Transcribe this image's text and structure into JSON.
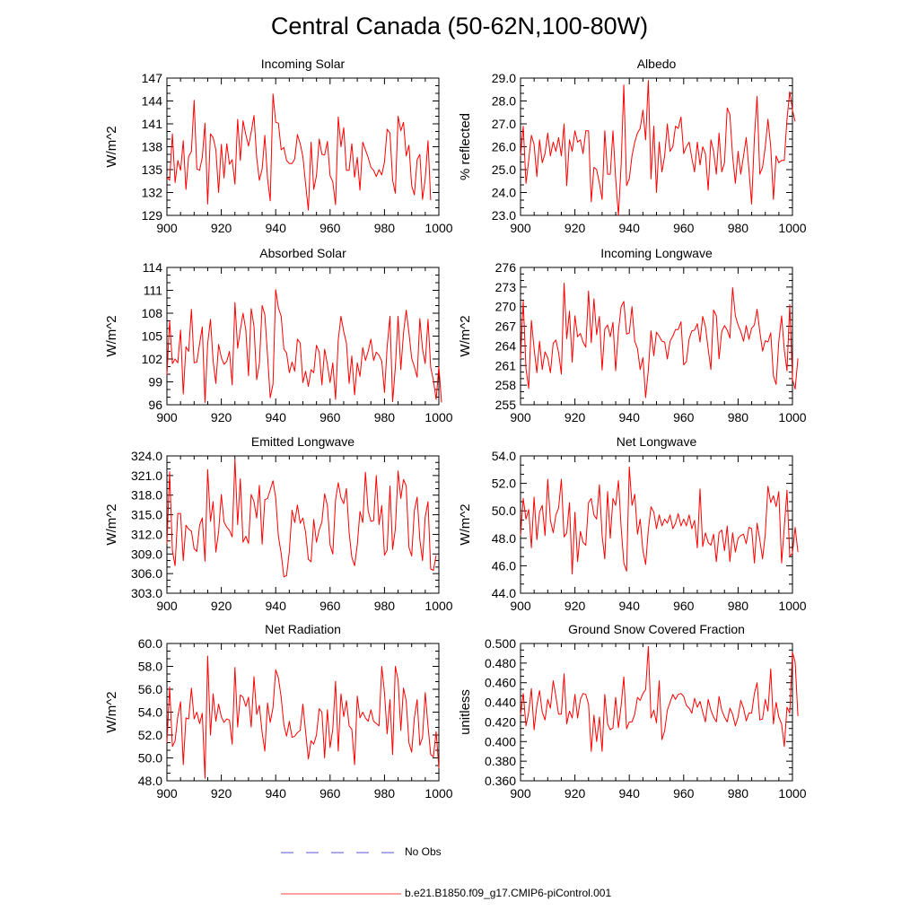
{
  "page": {
    "title": "Central Canada (50-62N,100-80W)"
  },
  "legend": [
    {
      "label": "No Obs",
      "color": "#2020c0",
      "style": "dashed"
    },
    {
      "label": "b.e21.B1850.f09_g17.CMIP6-piControl.001",
      "color": "#ff0000",
      "style": "solid"
    }
  ],
  "series_color": "#ff0000",
  "chart_data": [
    {
      "type": "line",
      "title": "Incoming Solar",
      "ylabel": "W/m^2",
      "xlim": [
        900,
        1000
      ],
      "xticks": [
        "900",
        "920",
        "940",
        "960",
        "980",
        "1000"
      ],
      "ylim": [
        129,
        147
      ],
      "yticks": [
        "129",
        "132",
        "135",
        "138",
        "141",
        "144",
        "147"
      ],
      "x_start": 900,
      "values": [
        134.0,
        133.6,
        139.7,
        133.3,
        136.2,
        134.9,
        138.8,
        132.4,
        136.7,
        137.4,
        144.1,
        135.1,
        134.9,
        136.6,
        141.1,
        130.5,
        139.7,
        139.2,
        137.6,
        132.0,
        138.3,
        133.9,
        138.4,
        135.7,
        136.3,
        133.1,
        141.6,
        136.2,
        141.4,
        139.6,
        138.1,
        139.9,
        142.1,
        136.6,
        133.6,
        135.1,
        139.5,
        133.8,
        130.9,
        144.9,
        141.2,
        141.1,
        137.6,
        137.9,
        136.2,
        135.8,
        135.8,
        136.4,
        139.6,
        138.4,
        136.7,
        133.1,
        129.7,
        138.6,
        132.4,
        134.2,
        139.0,
        137.0,
        136.9,
        138.7,
        134.2,
        133.4,
        130.4,
        141.9,
        138.0,
        140.5,
        134.9,
        134.9,
        138.4,
        134.0,
        136.6,
        132.3,
        138.6,
        137.6,
        136.6,
        135.3,
        134.9,
        134.1,
        135.0,
        134.3,
        136.0,
        140.3,
        139.8,
        133.6,
        131.9,
        142.0,
        140.1,
        141.2,
        136.8,
        138.2,
        132.9,
        131.7,
        136.3,
        137.0,
        131.1,
        133.8,
        138.8,
        131.0
      ]
    },
    {
      "type": "line",
      "title": "Albedo",
      "ylabel": "% reflected",
      "xlim": [
        900,
        1000
      ],
      "xticks": [
        "900",
        "920",
        "940",
        "960",
        "980",
        "1000"
      ],
      "ylim": [
        23.0,
        29.0
      ],
      "yticks": [
        "23.0",
        "24.0",
        "25.0",
        "26.0",
        "27.0",
        "28.0",
        "29.0"
      ],
      "x_start": 900,
      "values": [
        25.6,
        26.9,
        24.4,
        25.4,
        26.5,
        26.1,
        24.7,
        26.3,
        25.3,
        25.7,
        26.6,
        25.6,
        26.2,
        25.8,
        26.4,
        25.6,
        27.0,
        24.3,
        26.3,
        25.8,
        26.7,
        26.2,
        26.3,
        25.7,
        26.7,
        26.7,
        23.6,
        25.1,
        25.0,
        24.4,
        23.7,
        26.7,
        24.8,
        24.8,
        26.7,
        24.6,
        23.0,
        25.2,
        28.7,
        24.3,
        24.6,
        25.6,
        26.2,
        26.6,
        26.8,
        27.6,
        26.3,
        28.9,
        24.6,
        26.9,
        24.0,
        26.2,
        24.9,
        25.6,
        27.0,
        25.8,
        26.0,
        26.9,
        26.8,
        27.3,
        25.7,
        26.0,
        26.2,
        25.5,
        24.9,
        26.2,
        25.2,
        26.0,
        25.7,
        24.1,
        26.3,
        25.8,
        24.8,
        26.6,
        24.9,
        25.3,
        27.7,
        27.4,
        25.6,
        24.4,
        25.8,
        24.8,
        25.6,
        26.4,
        25.0,
        23.5,
        26.4,
        28.2,
        24.8,
        25.1,
        26.0,
        27.2,
        26.0,
        23.7,
        25.6,
        25.3,
        25.4,
        25.4,
        27.2,
        28.4,
        27.6,
        27.1
      ]
    },
    {
      "type": "line",
      "title": "Absorbed Solar",
      "ylabel": "W/m^2",
      "xlim": [
        900,
        1000
      ],
      "xticks": [
        "900",
        "920",
        "940",
        "960",
        "980",
        "1000"
      ],
      "ylim": [
        96,
        114
      ],
      "yticks": [
        "96",
        "99",
        "102",
        "105",
        "108",
        "111",
        "114"
      ],
      "x_start": 900,
      "values": [
        99.9,
        107.0,
        101.4,
        102.0,
        101.5,
        105.8,
        97.4,
        103.6,
        103.0,
        108.5,
        101.5,
        101.6,
        104.0,
        106.2,
        96.3,
        104.0,
        107.2,
        101.7,
        98.8,
        103.9,
        102.2,
        101.3,
        101.7,
        103.0,
        98.6,
        109.4,
        103.4,
        105.8,
        108.0,
        105.8,
        99.8,
        108.6,
        106.3,
        99.3,
        101.4,
        109.0,
        107.8,
        102.5,
        96.9,
        98.7,
        111.1,
        108.7,
        107.6,
        103.3,
        102.8,
        100.2,
        101.6,
        100.4,
        104.6,
        104.1,
        98.9,
        100.4,
        98.4,
        100.6,
        100.2,
        103.8,
        102.9,
        98.6,
        103.3,
        101.3,
        98.9,
        101.5,
        96.7,
        104.5,
        107.6,
        105.6,
        104.1,
        98.8,
        102.4,
        97.3,
        101.5,
        99.7,
        103.5,
        101.8,
        103.0,
        104.6,
        101.8,
        102.9,
        102.5,
        101.7,
        97.6,
        103.6,
        107.6,
        96.4,
        100.9,
        107.6,
        100.6,
        105.4,
        108.4,
        105.4,
        102.1,
        101.0,
        99.6,
        107.3,
        103.3,
        101.4,
        107.2,
        100.9,
        99.2,
        96.7,
        101.0,
        96.3
      ]
    },
    {
      "type": "line",
      "title": "Incoming Longwave",
      "ylabel": "W/m^2",
      "xlim": [
        900,
        1000
      ],
      "xticks": [
        "900",
        "920",
        "940",
        "960",
        "980",
        "1000"
      ],
      "ylim": [
        255,
        276
      ],
      "yticks": [
        "255",
        "258",
        "261",
        "264",
        "267",
        "270",
        "273",
        "276"
      ],
      "x_start": 900,
      "values": [
        262.0,
        270.9,
        260.5,
        257.5,
        267.9,
        263.6,
        259.9,
        264.7,
        260.4,
        263.1,
        262.2,
        259.9,
        264.4,
        264.9,
        263.0,
        259.7,
        273.6,
        265.1,
        269.3,
        261.5,
        268.6,
        265.4,
        265.9,
        264.6,
        263.8,
        272.4,
        264.5,
        271.2,
        265.7,
        268.5,
        260.3,
        266.6,
        267.2,
        265.4,
        267.6,
        260.2,
        266.3,
        270.0,
        270.8,
        265.8,
        266.0,
        270.0,
        264.7,
        263.6,
        260.4,
        262.2,
        256.1,
        260.3,
        266.3,
        262.5,
        266.1,
        265.5,
        264.7,
        264.6,
        262.0,
        264.7,
        265.5,
        266.5,
        266.5,
        267.7,
        261.1,
        261.6,
        265.1,
        266.3,
        266.4,
        267.4,
        264.6,
        268.5,
        267.0,
        263.5,
        260.4,
        269.5,
        268.6,
        262.0,
        266.2,
        267.1,
        266.4,
        265.2,
        272.9,
        268.6,
        267.2,
        266.2,
        264.7,
        267.1,
        265.0,
        266.7,
        267.2,
        269.6,
        266.2,
        263.2,
        264.8,
        264.6,
        266.0,
        259.4,
        258.1,
        264.7,
        268.6,
        263.4,
        260.2,
        270.3,
        258.9,
        257.4,
        262.1
      ]
    },
    {
      "type": "line",
      "title": "Emitted Longwave",
      "ylabel": "W/m^2",
      "xlim": [
        900,
        1000
      ],
      "xticks": [
        "900",
        "920",
        "940",
        "960",
        "980",
        "1000"
      ],
      "ylim": [
        303.0,
        324.0
      ],
      "yticks": [
        "303.0",
        "306.0",
        "309.0",
        "312.0",
        "315.0",
        "318.0",
        "321.0",
        "324.0"
      ],
      "x_start": 900,
      "values": [
        310.5,
        321.6,
        309.5,
        307.2,
        315.2,
        315.2,
        308.0,
        313.4,
        312.8,
        312.5,
        309.8,
        309.4,
        313.4,
        314.5,
        307.9,
        321.9,
        314.0,
        317.0,
        309.3,
        312.4,
        318.1,
        313.9,
        313.1,
        312.6,
        311.6,
        323.5,
        313.5,
        320.5,
        310.8,
        311.7,
        310.6,
        318.1,
        317.0,
        314.5,
        319.5,
        310.5,
        317.3,
        317.5,
        318.8,
        320.2,
        317.6,
        311.7,
        309.1,
        305.5,
        305.7,
        309.4,
        315.7,
        313.8,
        316.5,
        313.7,
        314.5,
        312.3,
        308.2,
        307.8,
        314.3,
        310.8,
        312.7,
        313.9,
        318.2,
        316.4,
        310.4,
        309.0,
        317.3,
        319.9,
        317.6,
        316.7,
        319.0,
        312.3,
        308.5,
        307.2,
        310.4,
        315.5,
        313.8,
        321.5,
        315.6,
        314.0,
        314.1,
        321.0,
        313.5,
        316.4,
        308.8,
        309.6,
        319.4,
        309.7,
        312.8,
        321.7,
        317.5,
        320.4,
        319.4,
        310.0,
        308.7,
        315.6,
        317.7,
        311.2,
        308.0,
        314.7,
        317.0,
        306.7,
        306.5,
        308.8
      ]
    },
    {
      "type": "line",
      "title": "Net Longwave",
      "ylabel": "W/m^2",
      "xlim": [
        900,
        1000
      ],
      "xticks": [
        "900",
        "920",
        "940",
        "960",
        "980",
        "1000"
      ],
      "ylim": [
        44.0,
        54.0
      ],
      "yticks": [
        "44.0",
        "46.0",
        "48.0",
        "50.0",
        "52.0",
        "54.0"
      ],
      "x_start": 900,
      "values": [
        48.2,
        50.9,
        49.4,
        50.1,
        47.3,
        51.0,
        47.9,
        49.9,
        50.4,
        48.2,
        52.3,
        49.3,
        48.4,
        49.7,
        50.2,
        52.3,
        48.1,
        48.4,
        50.6,
        45.4,
        49.9,
        46.3,
        48.5,
        47.7,
        47.5,
        50.6,
        50.9,
        49.7,
        49.4,
        51.9,
        48.2,
        46.5,
        51.4,
        48.0,
        50.9,
        50.4,
        52.2,
        48.8,
        46.2,
        45.6,
        53.2,
        50.4,
        51.2,
        48.3,
        49.4,
        47.1,
        46.1,
        48.6,
        50.3,
        49.9,
        48.7,
        49.7,
        48.9,
        49.4,
        49.1,
        49.7,
        48.7,
        49.1,
        49.8,
        48.9,
        49.4,
        48.9,
        49.7,
        48.7,
        49.3,
        47.3,
        51.6,
        47.4,
        48.4,
        47.7,
        47.5,
        48.3,
        46.3,
        48.4,
        48.6,
        47.1,
        48.9,
        46.3,
        48.4,
        47.0,
        48.0,
        48.2,
        48.3,
        47.6,
        48.8,
        48.7,
        46.2,
        49.1,
        47.9,
        46.5,
        48.3,
        51.8,
        50.6,
        51.1,
        50.3,
        51.4,
        46.2,
        48.8,
        51.5,
        46.7,
        46.9,
        48.8,
        47.0
      ]
    },
    {
      "type": "line",
      "title": "Net Radiation",
      "ylabel": "W/m^2",
      "xlim": [
        900,
        1000
      ],
      "xticks": [
        "900",
        "920",
        "940",
        "960",
        "980",
        "1000"
      ],
      "ylim": [
        48.0,
        60.0
      ],
      "yticks": [
        "48.0",
        "50.0",
        "52.0",
        "54.0",
        "56.0",
        "58.0",
        "60.0"
      ],
      "x_start": 900,
      "values": [
        51.3,
        56.2,
        51.0,
        51.5,
        53.6,
        54.9,
        49.4,
        53.5,
        53.4,
        56.1,
        53.4,
        54.0,
        53.0,
        53.9,
        48.2,
        58.9,
        52.0,
        55.6,
        53.2,
        54.7,
        53.6,
        53.1,
        53.4,
        53.3,
        51.2,
        57.9,
        52.7,
        55.5,
        55.3,
        54.5,
        55.3,
        52.7,
        57.1,
        53.8,
        54.6,
        52.2,
        50.6,
        54.8,
        53.1,
        54.4,
        57.7,
        57.0,
        55.3,
        52.9,
        51.9,
        53.2,
        51.8,
        51.9,
        52.2,
        52.4,
        54.7,
        52.3,
        49.9,
        51.5,
        51.2,
        52.0,
        54.3,
        54.0,
        50.0,
        54.2,
        50.9,
        52.5,
        56.7,
        50.6,
        55.6,
        53.6,
        55.0,
        52.8,
        52.5,
        49.4,
        55.4,
        53.5,
        54.0,
        53.5,
        53.2,
        54.2,
        53.2,
        53.0,
        52.8,
        58.0,
        55.7,
        52.1,
        55.1,
        50.3,
        58.0,
        56.8,
        52.4,
        56.1,
        55.0,
        51.3,
        50.5,
        53.5,
        55.1,
        51.1,
        51.8,
        55.7,
        52.8,
        50.3,
        50.1,
        52.3,
        49.1
      ]
    },
    {
      "type": "line",
      "title": "Ground Snow Covered Fraction",
      "ylabel": "unitless",
      "xlim": [
        900,
        1000
      ],
      "xticks": [
        "900",
        "920",
        "940",
        "960",
        "980",
        "1000"
      ],
      "ylim": [
        0.36,
        0.5
      ],
      "yticks": [
        "0.360",
        "0.380",
        "0.400",
        "0.420",
        "0.440",
        "0.460",
        "0.480",
        "0.500"
      ],
      "x_start": 900,
      "values": [
        0.427,
        0.449,
        0.416,
        0.43,
        0.454,
        0.412,
        0.437,
        0.452,
        0.43,
        0.422,
        0.443,
        0.434,
        0.462,
        0.446,
        0.428,
        0.428,
        0.469,
        0.418,
        0.431,
        0.424,
        0.448,
        0.424,
        0.443,
        0.449,
        0.448,
        0.438,
        0.39,
        0.427,
        0.4,
        0.425,
        0.39,
        0.448,
        0.418,
        0.412,
        0.414,
        0.445,
        0.414,
        0.437,
        0.466,
        0.413,
        0.42,
        0.42,
        0.428,
        0.445,
        0.442,
        0.449,
        0.453,
        0.497,
        0.424,
        0.432,
        0.419,
        0.462,
        0.402,
        0.411,
        0.432,
        0.44,
        0.448,
        0.443,
        0.448,
        0.449,
        0.446,
        0.437,
        0.434,
        0.429,
        0.444,
        0.435,
        0.441,
        0.43,
        0.42,
        0.443,
        0.432,
        0.425,
        0.42,
        0.446,
        0.432,
        0.425,
        0.42,
        0.434,
        0.428,
        0.416,
        0.425,
        0.442,
        0.434,
        0.421,
        0.429,
        0.429,
        0.449,
        0.46,
        0.422,
        0.423,
        0.443,
        0.431,
        0.474,
        0.418,
        0.44,
        0.425,
        0.418,
        0.395,
        0.435,
        0.429,
        0.491,
        0.481,
        0.426
      ]
    }
  ]
}
